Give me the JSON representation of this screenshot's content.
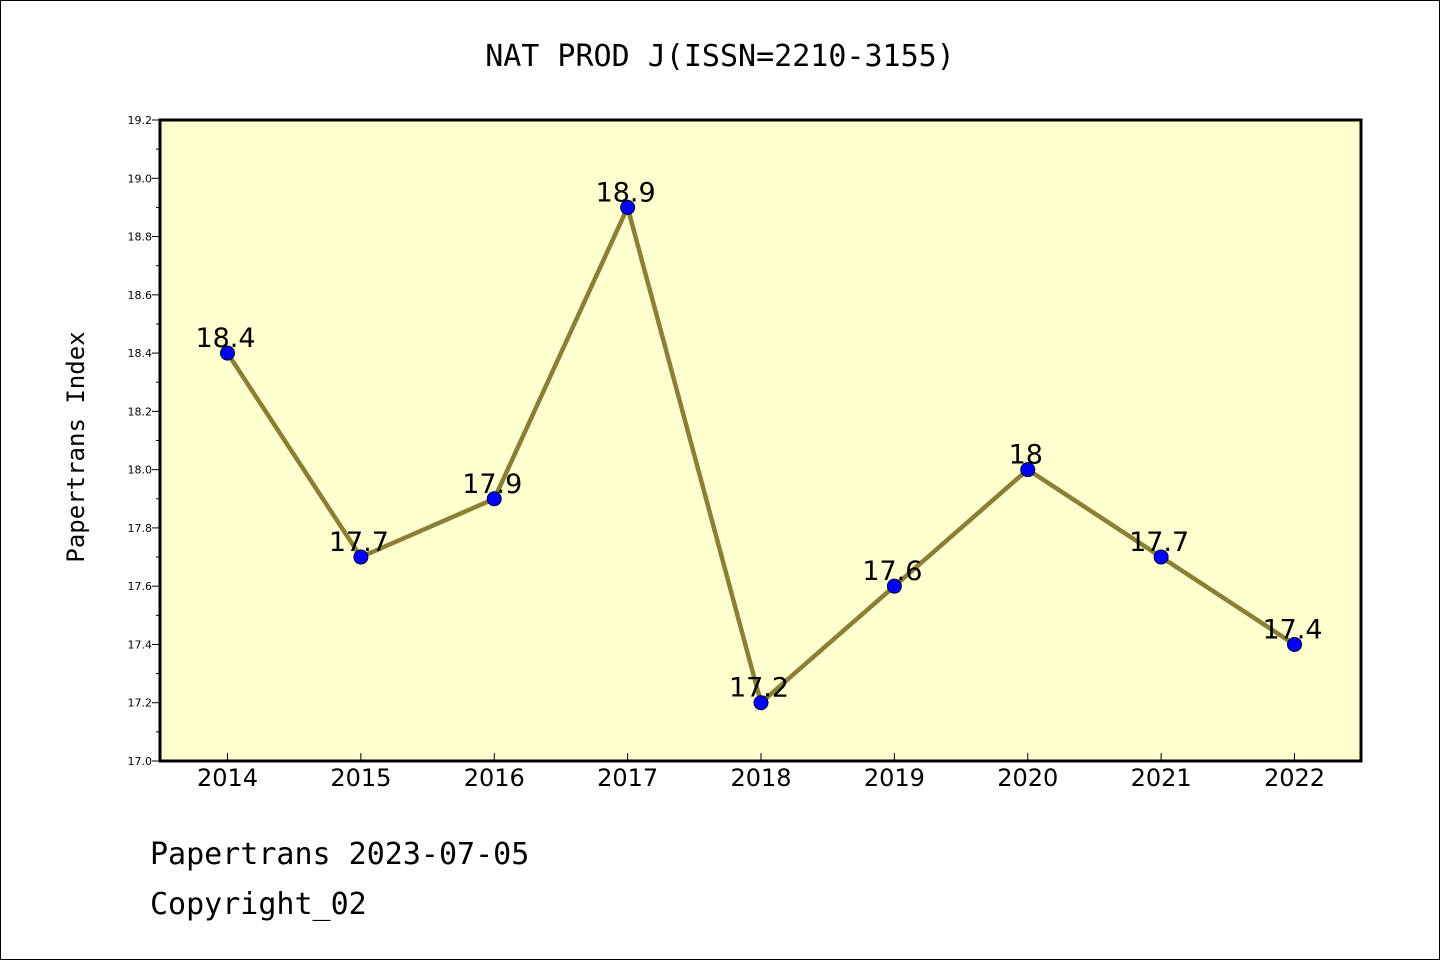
{
  "chart_data": {
    "type": "line",
    "title": "NAT PROD J(ISSN=2210-3155)",
    "ylabel": "Papertrans Index",
    "xlabel": "",
    "x": [
      "2014",
      "2015",
      "2016",
      "2017",
      "2018",
      "2019",
      "2020",
      "2021",
      "2022"
    ],
    "values": [
      18.4,
      17.7,
      17.9,
      18.9,
      17.2,
      17.6,
      18.0,
      17.7,
      17.4
    ],
    "data_labels": [
      "18.4",
      "17.7",
      "17.9",
      "18.9",
      "17.2",
      "17.6",
      "18",
      "17.7",
      "17.4"
    ],
    "ylim": [
      17.0,
      19.2
    ],
    "yticks": [
      "17.0",
      "17.2",
      "17.4",
      "17.6",
      "17.8",
      "18.0",
      "18.2",
      "18.4",
      "18.6",
      "18.8",
      "19.0",
      "19.2"
    ],
    "grid": false,
    "legend": "none",
    "colors": {
      "plot_background": "#FFFFD0",
      "line": "#8B7E35",
      "marker": "#0000FF"
    }
  },
  "footer": {
    "line1": "Papertrans 2023-07-05",
    "line2": "Copyright_02"
  }
}
